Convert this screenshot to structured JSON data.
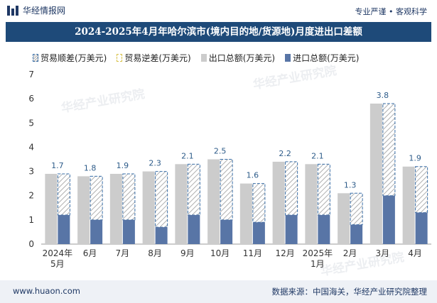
{
  "header": {
    "brand": "华经情报网",
    "tags": "专业严谨 • 客观科学"
  },
  "title": "2024-2025年4月年哈尔滨市(境内目的地/货源地)月度进出口差额",
  "footer": {
    "website": "www.huaon.com",
    "source": "数据来源：中国海关，华经产业研究院整理"
  },
  "watermark": "华经产业研究院",
  "colors": {
    "title_bg": "#1e4a79",
    "export": "#cccccc",
    "import": "#5875a6",
    "surplus_border": "#3a6fa8",
    "deficit_border": "#d8c24a"
  },
  "chart_data": {
    "type": "bar",
    "title": "2024-2025年4月年哈尔滨市(境内目的地/货源地)月度进出口差额",
    "legend": [
      "贸易顺差(万美元)",
      "贸易逆差(万美元)",
      "出口总额(万美元)",
      "进口总额(万美元)"
    ],
    "categories": [
      "2024年\n5月",
      "6月",
      "7月",
      "8月",
      "9月",
      "10月",
      "11月",
      "12月",
      "2025年\n1月",
      "2月",
      "3月",
      "4月"
    ],
    "series": [
      {
        "name": "出口总额(万美元)",
        "values": [
          2.9,
          2.8,
          2.9,
          3.0,
          3.3,
          3.5,
          2.5,
          3.4,
          3.3,
          2.1,
          5.8,
          3.2
        ]
      },
      {
        "name": "进口总额(万美元)",
        "values": [
          1.2,
          1.0,
          1.0,
          0.7,
          1.2,
          1.0,
          0.9,
          1.2,
          1.2,
          0.8,
          2.0,
          1.3
        ]
      },
      {
        "name": "贸易顺差(万美元)",
        "values": [
          1.7,
          1.8,
          1.9,
          2.3,
          2.1,
          2.5,
          1.6,
          2.2,
          2.1,
          1.3,
          3.8,
          1.9
        ]
      }
    ],
    "data_labels": [
      "1.7",
      "1.8",
      "1.9",
      "2.3",
      "2.1",
      "2.5",
      "1.6",
      "2.2",
      "2.1",
      "1.3",
      "3.8",
      "1.9"
    ],
    "y_ticks": [
      "0",
      "1",
      "2",
      "3",
      "4",
      "5",
      "6",
      "7"
    ],
    "ylim": [
      0,
      7
    ],
    "xlabel": "",
    "ylabel": ""
  }
}
